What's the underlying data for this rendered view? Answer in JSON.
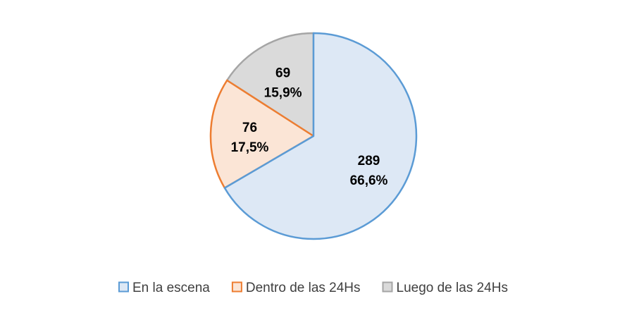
{
  "chart_data": {
    "type": "pie",
    "title": "",
    "start_angle_deg": 0,
    "direction": "clockwise",
    "legend_position": "bottom",
    "slices": [
      {
        "label": "En la escena",
        "value": 289,
        "value_text": "289",
        "percent_text": "66,6%",
        "fill": "#dde8f5",
        "stroke": "#5b9bd5"
      },
      {
        "label": "Dentro de las 24Hs",
        "value": 76,
        "value_text": "76",
        "percent_text": "17,5%",
        "fill": "#fbe5d6",
        "stroke": "#ed7d31"
      },
      {
        "label": "Luego de las 24Hs",
        "value": 69,
        "value_text": "69",
        "percent_text": "15,9%",
        "fill": "#dadada",
        "stroke": "#a5a5a5"
      }
    ]
  }
}
